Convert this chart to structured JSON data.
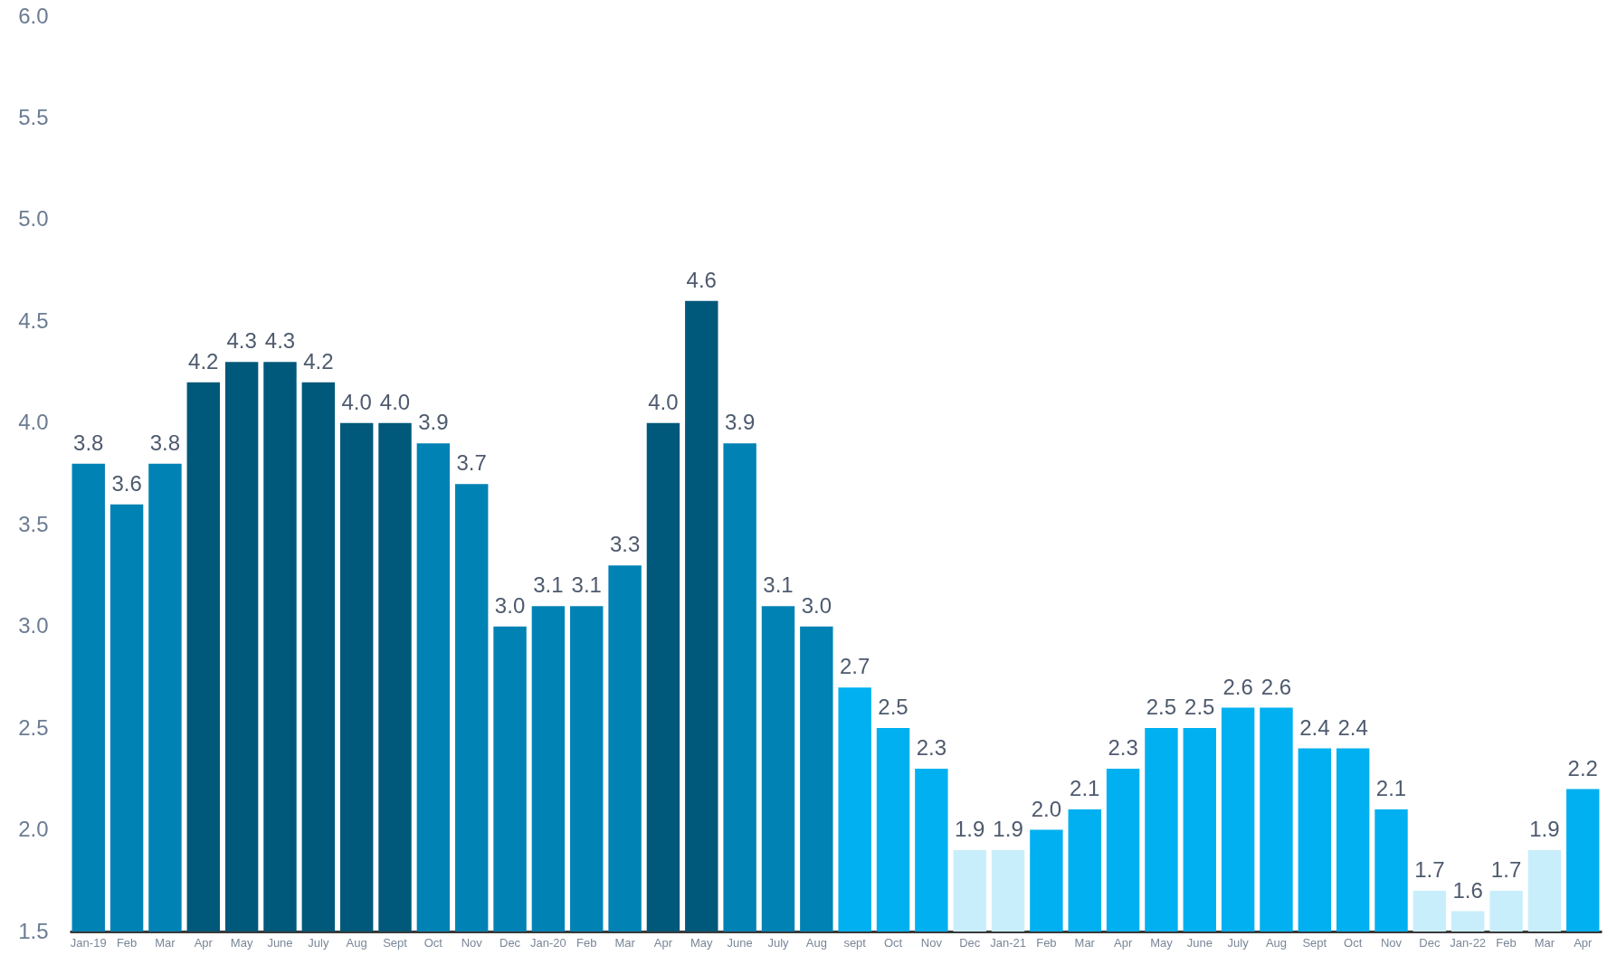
{
  "chart_data": {
    "type": "bar",
    "categories": [
      "Jan-19",
      "Feb",
      "Mar",
      "Apr",
      "May",
      "June",
      "July",
      "Aug",
      "Sept",
      "Oct",
      "Nov",
      "Dec",
      "Jan-20",
      "Feb",
      "Mar",
      "Apr",
      "May",
      "June",
      "July",
      "Aug",
      "sept",
      "Oct",
      "Nov",
      "Dec",
      "Jan-21",
      "Feb",
      "Mar",
      "Apr",
      "May",
      "June",
      "July",
      "Aug",
      "Sept",
      "Oct",
      "Nov",
      "Dec",
      "Jan-22",
      "Feb",
      "Mar",
      "Apr"
    ],
    "values": [
      3.8,
      3.6,
      3.8,
      4.2,
      4.3,
      4.3,
      4.2,
      4.0,
      4.0,
      3.9,
      3.7,
      3.0,
      3.1,
      3.1,
      3.3,
      4.0,
      4.6,
      3.9,
      3.1,
      3.0,
      2.7,
      2.5,
      2.3,
      1.9,
      1.9,
      2.0,
      2.1,
      2.3,
      2.5,
      2.5,
      2.6,
      2.6,
      2.4,
      2.4,
      2.1,
      1.7,
      1.6,
      1.7,
      1.9,
      2.2
    ],
    "value_labels": [
      "3.8",
      "3.6",
      "3.8",
      "4.2",
      "4.3",
      "4.3",
      "4.2",
      "4.0",
      "4.0",
      "3.9",
      "3.7",
      "3.0",
      "3.1",
      "3.1",
      "3.3",
      "4.0",
      "4.6",
      "3.9",
      "3.1",
      "3.0",
      "2.7",
      "2.5",
      "2.3",
      "1.9",
      "1.9",
      "2.0",
      "2.1",
      "2.3",
      "2.5",
      "2.5",
      "2.6",
      "2.6",
      "2.4",
      "2.4",
      "2.1",
      "1.7",
      "1.6",
      "1.7",
      "1.9",
      "2.2"
    ],
    "colors": [
      "#0082b4",
      "#0082b4",
      "#0082b4",
      "#00587a",
      "#00587a",
      "#00587a",
      "#00587a",
      "#00587a",
      "#00587a",
      "#0082b4",
      "#0082b4",
      "#0082b4",
      "#0082b4",
      "#0082b4",
      "#0082b4",
      "#00587a",
      "#00587a",
      "#0082b4",
      "#0082b4",
      "#0082b4",
      "#00b0f0",
      "#00b0f0",
      "#00b0f0",
      "#c9eefb",
      "#c9eefb",
      "#00b0f0",
      "#00b0f0",
      "#00b0f0",
      "#00b0f0",
      "#00b0f0",
      "#00b0f0",
      "#00b0f0",
      "#00b0f0",
      "#00b0f0",
      "#00b0f0",
      "#c9eefb",
      "#c9eefb",
      "#c9eefb",
      "#c9eefb",
      "#00b0f0"
    ],
    "ylim": [
      1.5,
      6.0
    ],
    "yticks": [
      1.5,
      {
        "value": 2,
        "label": "2.0"
      },
      2.5,
      {
        "value": 3,
        "label": "3.0"
      },
      3.5,
      {
        "value": 4,
        "label": "4.0"
      },
      4.5,
      {
        "value": 5,
        "label": "5.0"
      },
      5.5,
      {
        "value": 6,
        "label": "6.0"
      }
    ]
  }
}
